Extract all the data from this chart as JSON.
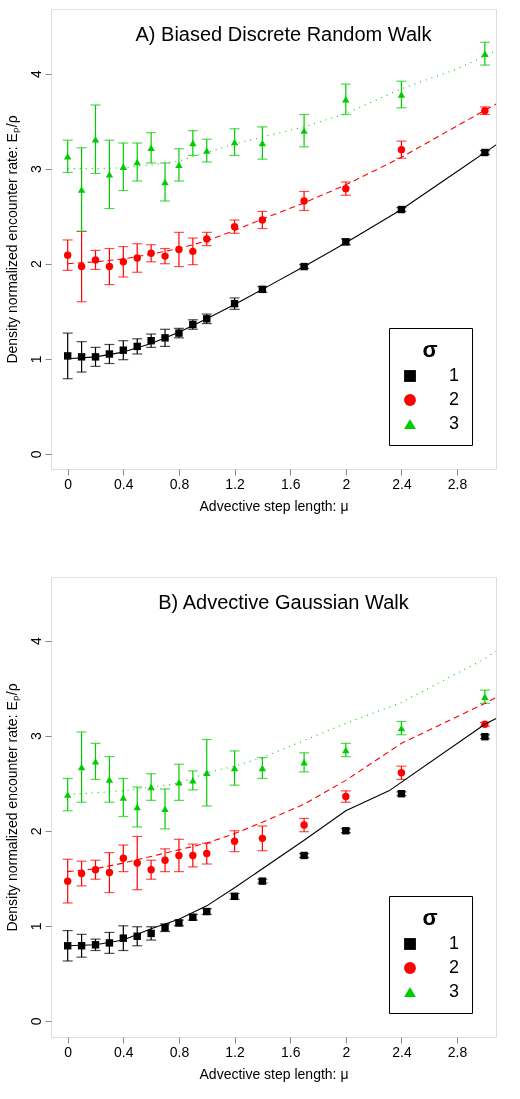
{
  "chart_data": [
    {
      "type": "scatter",
      "title": "A) Biased Discrete Random Walk",
      "xlabel": "Advective step length: μ",
      "ylabel": "Density normalized encounter rate:  Eₚ/ρ",
      "legend_title": "σ",
      "legend": "bottom right",
      "grid": false,
      "xlim": [
        -0.12,
        3.08
      ],
      "ylim": [
        -0.16,
        4.68
      ],
      "xticks": [
        0,
        0.4,
        0.8,
        1.2,
        1.6,
        2,
        2.4,
        2.8
      ],
      "yticks": [
        0,
        1,
        2,
        3,
        4
      ],
      "series": [
        {
          "name": "1",
          "color": "#000000",
          "marker": "square",
          "x": [
            0,
            0.1,
            0.2,
            0.3,
            0.4,
            0.5,
            0.6,
            0.7,
            0.8,
            0.9,
            1.0,
            1.2,
            1.4,
            1.7,
            2.0,
            2.4,
            3.0
          ],
          "values": [
            1.03,
            1.02,
            1.02,
            1.05,
            1.09,
            1.13,
            1.19,
            1.22,
            1.27,
            1.36,
            1.42,
            1.58,
            1.73,
            1.97,
            2.23,
            2.57,
            3.17
          ],
          "errors": [
            0.24,
            0.16,
            0.1,
            0.1,
            0.1,
            0.08,
            0.07,
            0.09,
            0.05,
            0.05,
            0.05,
            0.06,
            0.03,
            0.02,
            0.03,
            0.02,
            0.02
          ]
        },
        {
          "name": "2",
          "color": "#ff0000",
          "marker": "circle",
          "x": [
            0,
            0.1,
            0.2,
            0.3,
            0.4,
            0.5,
            0.6,
            0.7,
            0.8,
            0.9,
            1.0,
            1.2,
            1.4,
            1.7,
            2.0,
            2.4,
            3.0
          ],
          "values": [
            2.09,
            1.97,
            2.04,
            1.97,
            2.02,
            2.06,
            2.11,
            2.08,
            2.15,
            2.13,
            2.26,
            2.39,
            2.46,
            2.66,
            2.79,
            3.2,
            3.61
          ],
          "errors": [
            0.16,
            0.37,
            0.1,
            0.19,
            0.16,
            0.15,
            0.09,
            0.08,
            0.18,
            0.14,
            0.07,
            0.07,
            0.09,
            0.1,
            0.07,
            0.09,
            0.04
          ]
        },
        {
          "name": "3",
          "color": "#00cd00",
          "marker": "triangle",
          "x": [
            0,
            0.1,
            0.2,
            0.3,
            0.4,
            0.5,
            0.6,
            0.7,
            0.8,
            0.9,
            1.0,
            1.2,
            1.4,
            1.7,
            2.0,
            2.4,
            3.0
          ],
          "values": [
            3.13,
            2.78,
            3.31,
            2.94,
            3.02,
            3.07,
            3.22,
            2.86,
            3.04,
            3.27,
            3.19,
            3.28,
            3.27,
            3.4,
            3.73,
            3.78,
            4.21
          ],
          "errors": [
            0.17,
            0.44,
            0.36,
            0.36,
            0.25,
            0.2,
            0.16,
            0.2,
            0.17,
            0.13,
            0.12,
            0.14,
            0.17,
            0.17,
            0.16,
            0.14,
            0.12
          ]
        },
        {
          "type": "line",
          "color": "#000000",
          "line_style": "solid",
          "x": [
            0,
            0.2,
            0.4,
            0.6,
            0.8,
            1.0,
            1.2,
            1.4,
            1.7,
            2.0,
            2.4,
            2.8,
            3.08
          ],
          "values": [
            1.0,
            1.02,
            1.07,
            1.16,
            1.28,
            1.42,
            1.57,
            1.73,
            1.97,
            2.22,
            2.57,
            2.97,
            3.25
          ]
        },
        {
          "type": "line",
          "color": "#ff0000",
          "line_style": "dashed",
          "x": [
            0,
            0.2,
            0.4,
            0.6,
            0.8,
            1.0,
            1.2,
            1.4,
            1.7,
            2.0,
            2.4,
            2.8,
            3.08
          ],
          "values": [
            2.0,
            2.02,
            2.05,
            2.1,
            2.16,
            2.24,
            2.35,
            2.47,
            2.64,
            2.83,
            3.12,
            3.45,
            3.68
          ]
        },
        {
          "type": "line",
          "color": "#00cd00",
          "line_style": "dotted",
          "x": [
            0,
            0.2,
            0.4,
            0.6,
            0.8,
            1.2,
            1.7,
            2.0,
            2.4,
            2.8,
            3.08
          ],
          "values": [
            3.0,
            3.0,
            3.01,
            3.04,
            3.08,
            3.26,
            3.44,
            3.58,
            3.84,
            4.05,
            4.24
          ]
        }
      ]
    },
    {
      "type": "scatter",
      "title": "B) Advective Gaussian Walk",
      "xlabel": "Advective step length: μ",
      "ylabel": "Density normalized encounter rate:  Eₚ/ρ",
      "legend_title": "σ",
      "legend": "bottom right",
      "grid": false,
      "xlim": [
        -0.12,
        3.08
      ],
      "ylim": [
        -0.17,
        4.67
      ],
      "xticks": [
        0,
        0.4,
        0.8,
        1.2,
        1.6,
        2,
        2.4,
        2.8
      ],
      "yticks": [
        0,
        1,
        2,
        3,
        4
      ],
      "series": [
        {
          "name": "1",
          "color": "#000000",
          "marker": "square",
          "x": [
            0,
            0.1,
            0.2,
            0.3,
            0.4,
            0.5,
            0.6,
            0.7,
            0.8,
            0.9,
            1.0,
            1.2,
            1.4,
            1.7,
            2.0,
            2.4,
            3.0
          ],
          "values": [
            0.79,
            0.79,
            0.8,
            0.82,
            0.87,
            0.89,
            0.92,
            0.98,
            1.03,
            1.09,
            1.15,
            1.31,
            1.47,
            1.74,
            2.0,
            2.39,
            2.99
          ],
          "errors": [
            0.16,
            0.12,
            0.06,
            0.11,
            0.13,
            0.1,
            0.07,
            0.04,
            0.03,
            0.03,
            0.03,
            0.03,
            0.02,
            0.02,
            0.02,
            0.02,
            0.02
          ]
        },
        {
          "name": "2",
          "color": "#ff0000",
          "marker": "circle",
          "x": [
            0,
            0.1,
            0.2,
            0.3,
            0.4,
            0.5,
            0.6,
            0.7,
            0.8,
            0.9,
            1.0,
            1.2,
            1.4,
            1.7,
            2.0,
            2.4,
            3.0
          ],
          "values": [
            1.47,
            1.55,
            1.59,
            1.56,
            1.71,
            1.66,
            1.59,
            1.69,
            1.74,
            1.74,
            1.76,
            1.89,
            1.92,
            2.06,
            2.36,
            2.61,
            3.12
          ],
          "errors": [
            0.23,
            0.13,
            0.1,
            0.21,
            0.14,
            0.28,
            0.1,
            0.12,
            0.17,
            0.12,
            0.11,
            0.11,
            0.13,
            0.07,
            0.06,
            0.07,
            0.02
          ]
        },
        {
          "name": "3",
          "color": "#00cd00",
          "marker": "triangle",
          "x": [
            0,
            0.1,
            0.2,
            0.3,
            0.4,
            0.5,
            0.6,
            0.7,
            0.8,
            0.9,
            1.0,
            1.2,
            1.4,
            1.7,
            2.0,
            2.4,
            3.0
          ],
          "values": [
            2.38,
            2.67,
            2.73,
            2.54,
            2.35,
            2.25,
            2.46,
            2.23,
            2.51,
            2.53,
            2.61,
            2.66,
            2.66,
            2.72,
            2.85,
            3.08,
            3.41
          ],
          "errors": [
            0.17,
            0.37,
            0.19,
            0.24,
            0.2,
            0.21,
            0.14,
            0.21,
            0.19,
            0.1,
            0.35,
            0.18,
            0.11,
            0.1,
            0.07,
            0.07,
            0.07
          ]
        },
        {
          "type": "line",
          "color": "#000000",
          "line_style": "solid",
          "x": [
            0,
            0.2,
            0.4,
            0.6,
            0.8,
            1.0,
            1.2,
            1.7,
            2.0,
            2.31,
            3.0,
            3.08
          ],
          "values": [
            0.79,
            0.8,
            0.85,
            0.97,
            1.07,
            1.21,
            1.4,
            1.9,
            2.21,
            2.42,
            3.12,
            3.18
          ]
        },
        {
          "type": "line",
          "color": "#ff0000",
          "line_style": "dashed",
          "x": [
            0,
            0.2,
            0.4,
            0.6,
            0.8,
            1.0,
            1.2,
            1.4,
            1.7,
            2.0,
            2.4,
            3.0,
            3.08
          ],
          "values": [
            1.57,
            1.6,
            1.66,
            1.73,
            1.8,
            1.87,
            1.97,
            2.09,
            2.28,
            2.53,
            2.92,
            3.34,
            3.4
          ]
        },
        {
          "type": "line",
          "color": "#00cd00",
          "line_style": "dotted",
          "x": [
            0,
            0.4,
            0.8,
            1.0,
            1.2,
            1.4,
            1.7,
            2.0,
            2.4,
            3.0,
            3.08
          ],
          "values": [
            2.38,
            2.42,
            2.5,
            2.61,
            2.68,
            2.77,
            2.95,
            3.13,
            3.35,
            3.81,
            3.89
          ]
        }
      ]
    }
  ]
}
